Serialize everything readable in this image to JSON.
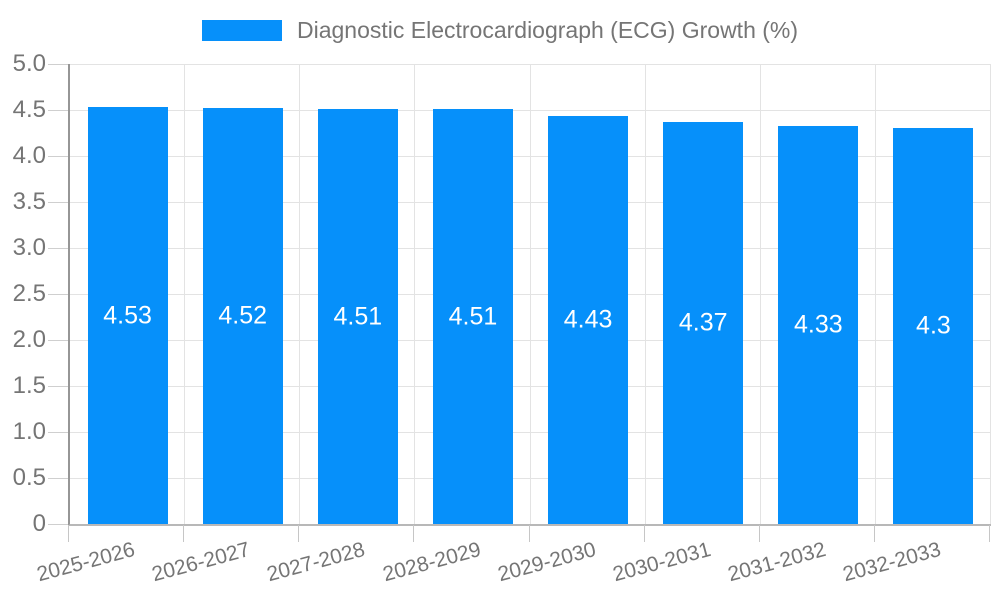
{
  "chart_data": {
    "type": "bar",
    "categories": [
      "2025-2026",
      "2026-2027",
      "2027-2028",
      "2028-2029",
      "2029-2030",
      "2030-2031",
      "2031-2032",
      "2032-2033"
    ],
    "values": [
      4.53,
      4.52,
      4.51,
      4.51,
      4.43,
      4.37,
      4.33,
      4.3
    ],
    "value_labels": [
      "4.53",
      "4.52",
      "4.51",
      "4.51",
      "4.43",
      "4.37",
      "4.33",
      "4.3"
    ],
    "series_name": "Diagnostic Electrocardiograph (ECG) Growth (%)",
    "title": "",
    "xlabel": "",
    "ylabel": "",
    "ylim": [
      0,
      5
    ],
    "ytick_step": 0.5,
    "y_tick_labels": [
      "0",
      "0.5",
      "1.0",
      "1.5",
      "2.0",
      "2.5",
      "3.0",
      "3.5",
      "4.0",
      "4.5",
      "5.0"
    ],
    "grid": true,
    "legend_position": "top-center",
    "bar_color": "#0690fa",
    "value_label_color": "#ffffff",
    "axis_text_color": "#757575",
    "gridline_color": "#e3e3e3"
  }
}
